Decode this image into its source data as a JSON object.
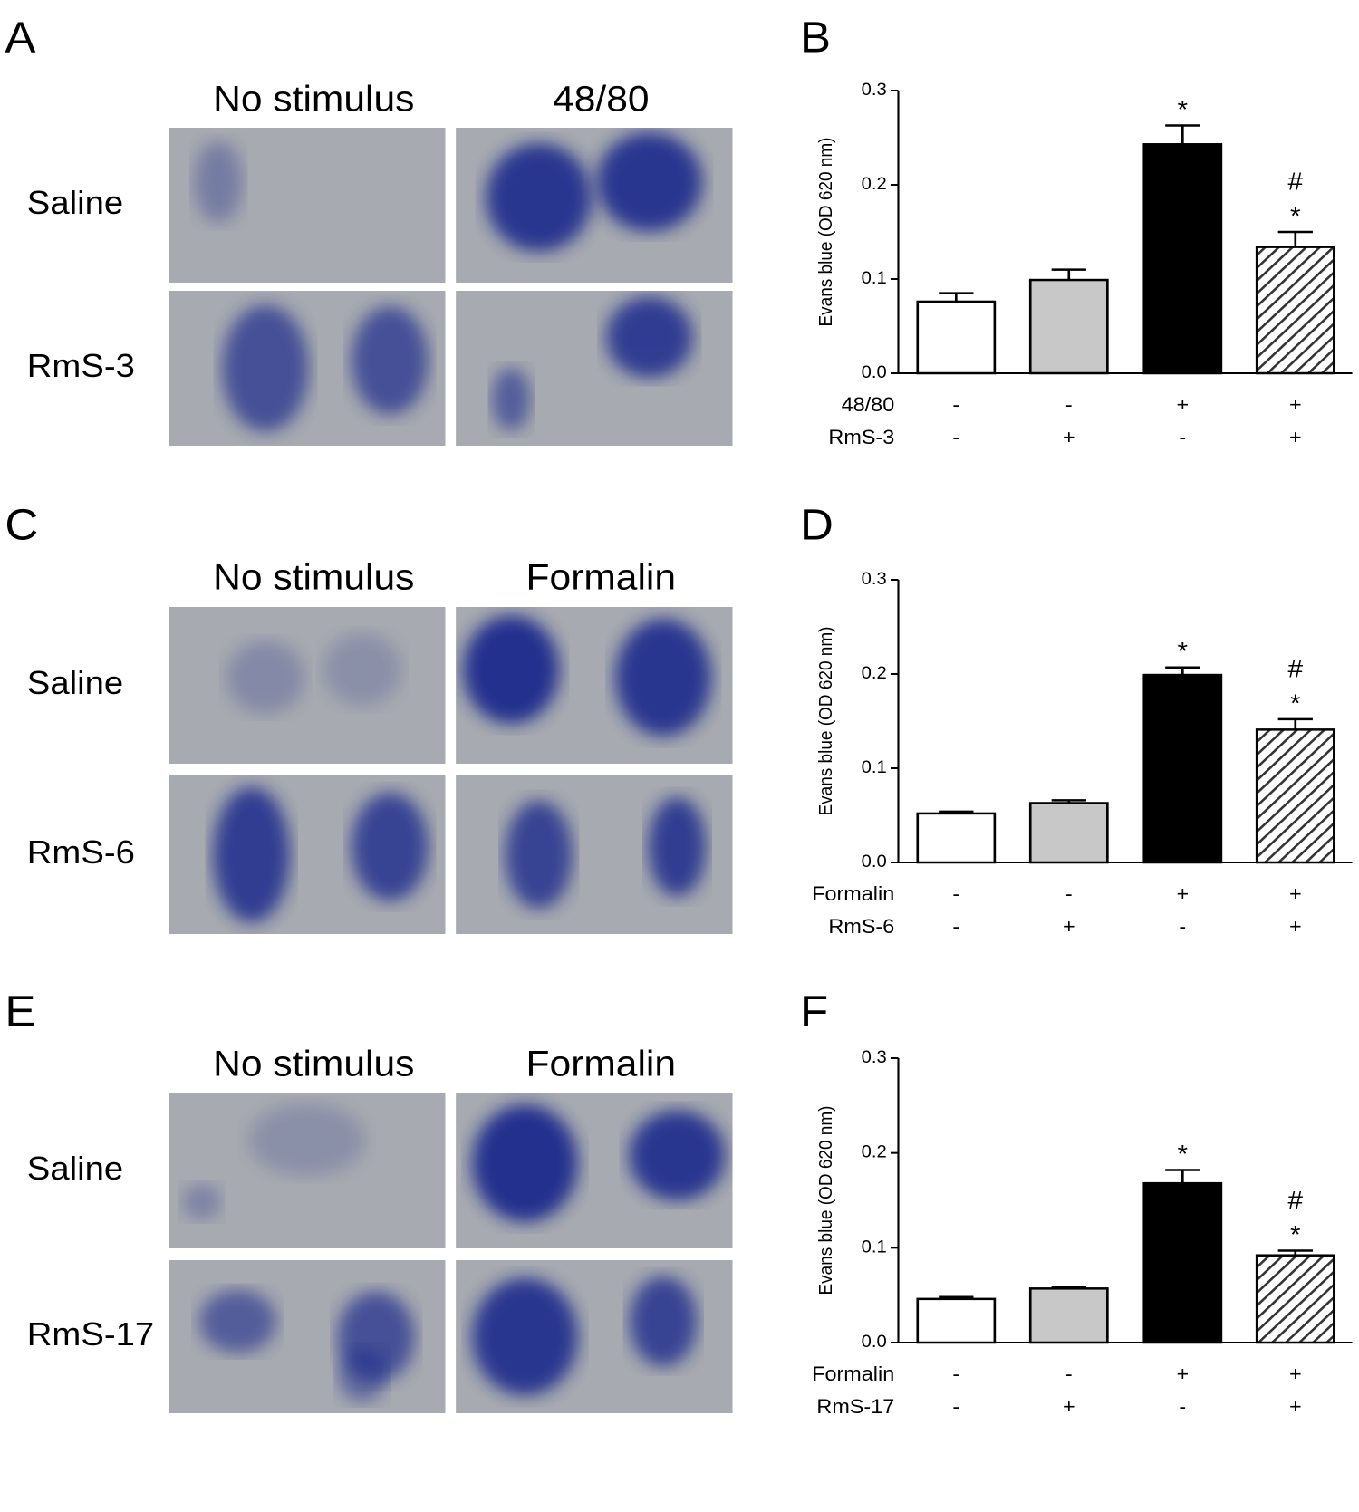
{
  "photo_panels": [
    {
      "label": "A",
      "columns": [
        "No stimulus",
        "48/80"
      ],
      "rows": [
        "Saline",
        "RmS-3"
      ]
    },
    {
      "label": "C",
      "columns": [
        "No stimulus",
        "Formalin"
      ],
      "rows": [
        "Saline",
        "RmS-6"
      ]
    },
    {
      "label": "E",
      "columns": [
        "No stimulus",
        "Formalin"
      ],
      "rows": [
        "Saline",
        "RmS-17"
      ]
    }
  ],
  "chart_data": [
    {
      "type": "bar",
      "panel_label": "B",
      "ylabel": "Evans blue (OD 620 nm)",
      "values": [
        0.076,
        0.099,
        0.243,
        0.134
      ],
      "errors": [
        0.009,
        0.011,
        0.02,
        0.016
      ],
      "colors": [
        "#ffffff",
        "#c8c8c8",
        "#000000",
        "#ffffff"
      ],
      "hatched": [
        false,
        false,
        false,
        true
      ],
      "significance": [
        null,
        null,
        [
          "*"
        ],
        [
          "#",
          "*"
        ]
      ],
      "treatments": [
        {
          "name": "48/80",
          "signs": [
            "-",
            "-",
            "+",
            "+"
          ]
        },
        {
          "name": "RmS-3",
          "signs": [
            "-",
            "+",
            "-",
            "+"
          ]
        }
      ],
      "ylim": [
        0,
        0.3
      ],
      "yticks": [
        {
          "value": 0,
          "label": "0.0"
        },
        0.1,
        0.2,
        0.3
      ]
    },
    {
      "type": "bar",
      "panel_label": "D",
      "ylabel": "Evans blue (OD 620 nm)",
      "values": [
        0.052,
        0.063,
        0.199,
        0.141
      ],
      "errors": [
        0.002,
        0.003,
        0.008,
        0.011
      ],
      "colors": [
        "#ffffff",
        "#c8c8c8",
        "#000000",
        "#ffffff"
      ],
      "hatched": [
        false,
        false,
        false,
        true
      ],
      "significance": [
        null,
        null,
        [
          "*"
        ],
        [
          "#",
          "*"
        ]
      ],
      "treatments": [
        {
          "name": "Formalin",
          "signs": [
            "-",
            "-",
            "+",
            "+"
          ]
        },
        {
          "name": "RmS-6",
          "signs": [
            "-",
            "+",
            "-",
            "+"
          ]
        }
      ],
      "ylim": [
        0,
        0.3
      ],
      "yticks": [
        {
          "value": 0,
          "label": "0.0"
        },
        0.1,
        0.2,
        0.3
      ]
    },
    {
      "type": "bar",
      "panel_label": "F",
      "ylabel": "Evans blue (OD 620 nm)",
      "values": [
        0.046,
        0.057,
        0.168,
        0.092
      ],
      "errors": [
        0.002,
        0.002,
        0.014,
        0.005
      ],
      "colors": [
        "#ffffff",
        "#c8c8c8",
        "#000000",
        "#ffffff"
      ],
      "hatched": [
        false,
        false,
        false,
        true
      ],
      "significance": [
        null,
        null,
        [
          "*"
        ],
        [
          "#",
          "*"
        ]
      ],
      "treatments": [
        {
          "name": "Formalin",
          "signs": [
            "-",
            "-",
            "+",
            "+"
          ]
        },
        {
          "name": "RmS-17",
          "signs": [
            "-",
            "+",
            "-",
            "+"
          ]
        }
      ],
      "ylim": [
        0,
        0.3
      ],
      "yticks": [
        {
          "value": 0,
          "label": "0.0"
        },
        0.1,
        0.2,
        0.3
      ]
    }
  ]
}
